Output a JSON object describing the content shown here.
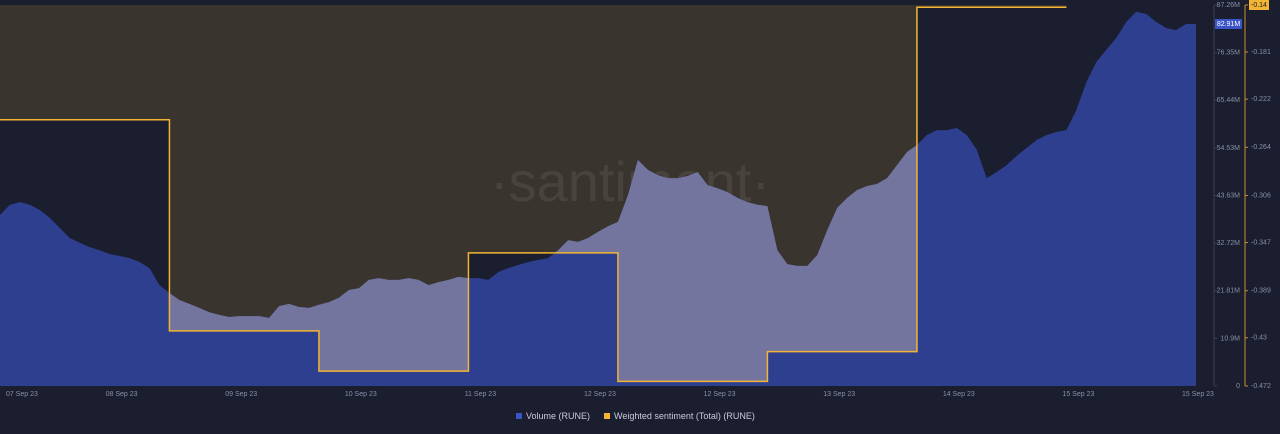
{
  "chart_data": {
    "type": "area-step",
    "watermark": "·santiment·",
    "categories": [
      null,
      null,
      "07 Sep 23",
      null,
      null,
      null,
      null,
      null,
      null,
      null,
      null,
      null,
      "08 Sep 23",
      null,
      null,
      null,
      null,
      null,
      null,
      null,
      null,
      null,
      null,
      null,
      "09 Sep 23",
      null,
      null,
      null,
      null,
      null,
      null,
      null,
      null,
      null,
      null,
      null,
      "10 Sep 23",
      null,
      null,
      null,
      null,
      null,
      null,
      null,
      null,
      null,
      null,
      null,
      "11 Sep 23",
      null,
      null,
      null,
      null,
      null,
      null,
      null,
      null,
      null,
      null,
      null,
      "12 Sep 23",
      null,
      null,
      null,
      null,
      null,
      null,
      null,
      null,
      null,
      null,
      null,
      "12 Sep 23",
      null,
      null,
      null,
      null,
      null,
      null,
      null,
      null,
      null,
      null,
      null,
      "13 Sep 23",
      null,
      null,
      null,
      null,
      null,
      null,
      null,
      null,
      null,
      null,
      null,
      "14 Sep 23",
      null,
      null,
      null,
      null,
      null,
      null,
      null,
      null,
      null,
      null,
      null,
      "15 Sep 23",
      null,
      null,
      null,
      null,
      null,
      null,
      null,
      null,
      null,
      null,
      null,
      "15 Sep 23"
    ],
    "series": [
      {
        "name": "Volume (RUNE)",
        "color": "#3b55c9",
        "axis": "y",
        "values": [
          39.2,
          41.5,
          42.1,
          41.5,
          40.3,
          38.5,
          36.2,
          33.9,
          32.8,
          31.8,
          31.1,
          30.2,
          29.8,
          29.3,
          28.4,
          27.0,
          23.1,
          21.3,
          19.7,
          18.8,
          17.9,
          16.9,
          16.3,
          15.8,
          16.0,
          16.0,
          16.0,
          15.6,
          18.3,
          18.8,
          18.1,
          17.9,
          18.6,
          19.2,
          20.2,
          22.0,
          22.4,
          24.3,
          24.7,
          24.3,
          24.3,
          24.7,
          24.3,
          23.1,
          23.8,
          24.3,
          25.0,
          24.7,
          24.7,
          24.3,
          26.1,
          27.0,
          27.7,
          28.4,
          28.9,
          29.3,
          31.1,
          33.4,
          33.0,
          33.9,
          35.3,
          36.6,
          37.6,
          43.7,
          51.8,
          49.5,
          48.3,
          47.6,
          47.6,
          48.1,
          49.0,
          46.0,
          45.3,
          44.4,
          43.1,
          42.1,
          41.5,
          41.2,
          31.1,
          27.9,
          27.5,
          27.5,
          30.0,
          35.7,
          40.8,
          43.1,
          44.9,
          45.8,
          46.3,
          47.6,
          50.6,
          53.6,
          55.2,
          57.5,
          58.6,
          58.6,
          59.1,
          57.5,
          54.1,
          47.6,
          49.0,
          50.6,
          52.7,
          54.5,
          56.3,
          57.5,
          58.2,
          58.6,
          63.2,
          69.6,
          74.2,
          77.0,
          79.7,
          83.4,
          85.7,
          85.2,
          83.4,
          82.0,
          81.5,
          82.9,
          82.91
        ]
      },
      {
        "name": "Weighted sentiment (Total) (RUNE)",
        "color": "#f3b533",
        "axis": "y2",
        "values": [
          -0.24,
          -0.24,
          -0.24,
          -0.24,
          -0.24,
          -0.24,
          -0.24,
          -0.24,
          -0.24,
          -0.24,
          -0.24,
          -0.24,
          -0.24,
          -0.24,
          -0.24,
          -0.24,
          -0.24,
          -0.424,
          -0.424,
          -0.424,
          -0.424,
          -0.424,
          -0.424,
          -0.424,
          -0.424,
          -0.424,
          -0.424,
          -0.424,
          -0.424,
          -0.424,
          -0.424,
          -0.424,
          -0.459,
          -0.459,
          -0.459,
          -0.459,
          -0.459,
          -0.459,
          -0.459,
          -0.459,
          -0.459,
          -0.459,
          -0.459,
          -0.459,
          -0.459,
          -0.459,
          -0.459,
          -0.356,
          -0.356,
          -0.356,
          -0.356,
          -0.356,
          -0.356,
          -0.356,
          -0.356,
          -0.356,
          -0.356,
          -0.356,
          -0.356,
          -0.356,
          -0.356,
          -0.356,
          -0.468,
          -0.468,
          -0.468,
          -0.468,
          -0.468,
          -0.468,
          -0.468,
          -0.468,
          -0.468,
          -0.468,
          -0.468,
          -0.468,
          -0.468,
          -0.468,
          -0.468,
          -0.442,
          -0.442,
          -0.442,
          -0.442,
          -0.442,
          -0.442,
          -0.442,
          -0.442,
          -0.442,
          -0.442,
          -0.442,
          -0.442,
          -0.442,
          -0.442,
          -0.442,
          -0.142,
          -0.142,
          -0.142,
          -0.142,
          -0.142,
          -0.142,
          -0.142,
          -0.142,
          -0.142,
          -0.142,
          -0.142,
          -0.142,
          -0.142,
          -0.142,
          -0.142,
          null,
          null,
          null,
          null,
          null,
          null,
          null,
          null,
          null,
          null,
          null,
          null,
          null,
          null
        ]
      }
    ],
    "ylim": [
      0,
      87.26
    ],
    "yticks": [
      {
        "value": 0,
        "label": "0"
      },
      {
        "value": 10.9,
        "label": "10.9M"
      },
      {
        "value": 21.81,
        "label": "21.81M"
      },
      {
        "value": 32.72,
        "label": "32.72M"
      },
      {
        "value": 43.63,
        "label": "43.63M"
      },
      {
        "value": 54.53,
        "label": "54.53M"
      },
      {
        "value": 65.44,
        "label": "65.44M"
      },
      {
        "value": 76.35,
        "label": "76.35M"
      },
      {
        "value": 87.26,
        "label": "87.26M"
      }
    ],
    "y2lim": [
      -0.472,
      -0.14
    ],
    "y2ticks": [
      -0.472,
      -0.43,
      -0.389,
      -0.347,
      -0.306,
      -0.264,
      -0.222,
      -0.181,
      -0.14
    ],
    "value_annotation": {
      "value": 82.91,
      "label": "82.91M"
    },
    "legend": "bottom"
  }
}
